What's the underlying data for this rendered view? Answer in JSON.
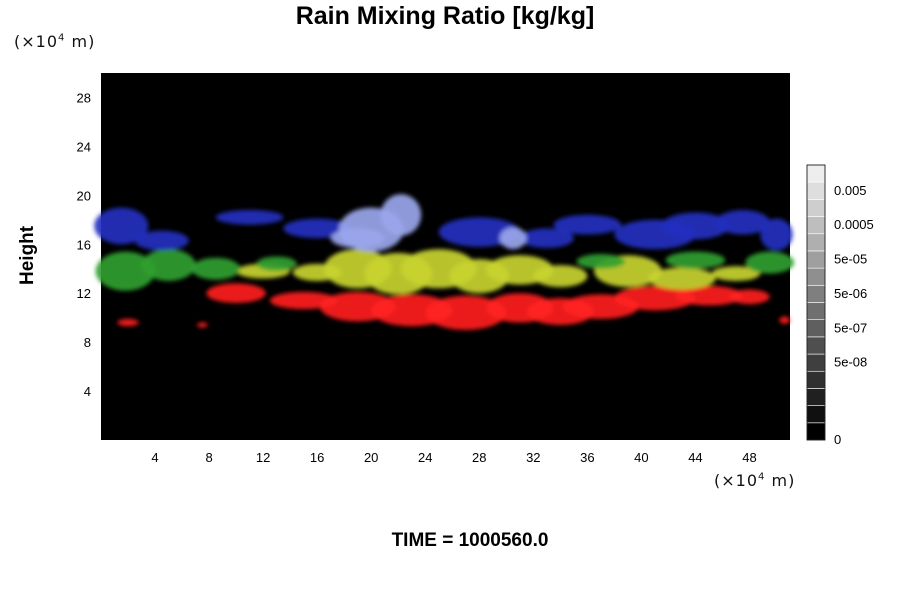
{
  "chart_data": {
    "type": "heatmap",
    "title": "Rain Mixing Ratio [kg/kg]",
    "ylabel": "Height",
    "x_unit": {
      "prefix": "(×10",
      "exp": "4",
      "suffix": " m)"
    },
    "y_unit": {
      "prefix": "(×10",
      "exp": "4",
      "suffix": " m)"
    },
    "xlim": [
      0,
      51
    ],
    "ylim": [
      0,
      30
    ],
    "x_ticks": [
      4,
      8,
      12,
      16,
      20,
      24,
      28,
      32,
      36,
      40,
      44,
      48
    ],
    "y_ticks": [
      4,
      8,
      12,
      16,
      20,
      24,
      28
    ],
    "background_color": "#000000",
    "colorbar": {
      "levels": 16,
      "tick_labels": [
        "0.005",
        "0.0005",
        "5e-05",
        "5e-06",
        "5e-07",
        "5e-08",
        "0"
      ],
      "tick_level_positions": [
        14.5,
        12.5,
        10.5,
        8.5,
        6.5,
        4.5,
        0
      ]
    },
    "layers": [
      {
        "color": "#ff2020",
        "blobs": [
          [
            10,
            12.0,
            2.2,
            0.8
          ],
          [
            15,
            11.4,
            2.5,
            0.7
          ],
          [
            19,
            10.9,
            2.8,
            1.2
          ],
          [
            23,
            10.6,
            3.0,
            1.3
          ],
          [
            27,
            10.4,
            3.0,
            1.4
          ],
          [
            31,
            10.8,
            2.5,
            1.2
          ],
          [
            34,
            10.5,
            2.5,
            1.1
          ],
          [
            37,
            10.9,
            2.8,
            1.0
          ],
          [
            41,
            11.6,
            3.0,
            1.0
          ],
          [
            45,
            11.8,
            2.5,
            0.8
          ],
          [
            48,
            11.7,
            1.5,
            0.6
          ],
          [
            2,
            9.6,
            0.8,
            0.3
          ],
          [
            7.5,
            9.4,
            0.4,
            0.2
          ],
          [
            50.6,
            9.8,
            0.4,
            0.3
          ]
        ]
      },
      {
        "color": "#c8d430",
        "blobs": [
          [
            12,
            13.8,
            2.0,
            0.6
          ],
          [
            16,
            13.7,
            1.8,
            0.7
          ],
          [
            19,
            14.0,
            2.5,
            1.6
          ],
          [
            22,
            13.6,
            2.5,
            1.7
          ],
          [
            25,
            14.0,
            2.8,
            1.6
          ],
          [
            28,
            13.4,
            2.2,
            1.4
          ],
          [
            31,
            13.9,
            2.5,
            1.2
          ],
          [
            34,
            13.4,
            2.0,
            0.9
          ],
          [
            39,
            13.8,
            2.5,
            1.3
          ],
          [
            43,
            13.2,
            2.5,
            0.9
          ],
          [
            47,
            13.6,
            1.8,
            0.6
          ]
        ]
      },
      {
        "color": "#30a030",
        "blobs": [
          [
            1.8,
            13.8,
            2.2,
            1.6
          ],
          [
            5,
            14.3,
            2.0,
            1.3
          ],
          [
            8.5,
            14.0,
            1.8,
            0.9
          ],
          [
            13,
            14.4,
            1.5,
            0.6
          ],
          [
            37,
            14.6,
            1.8,
            0.6
          ],
          [
            44,
            14.7,
            2.2,
            0.7
          ],
          [
            49.5,
            14.5,
            1.8,
            0.9
          ]
        ]
      },
      {
        "color": "#2430c0",
        "blobs": [
          [
            1.5,
            17.5,
            2.0,
            1.5
          ],
          [
            4.5,
            16.3,
            2.0,
            0.8
          ],
          [
            11,
            18.2,
            2.5,
            0.6
          ],
          [
            16,
            17.3,
            2.5,
            0.8
          ],
          [
            28,
            17.0,
            3.0,
            1.2
          ],
          [
            33,
            16.5,
            2.0,
            0.8
          ],
          [
            36,
            17.6,
            2.5,
            0.8
          ],
          [
            41,
            16.8,
            3.0,
            1.2
          ],
          [
            44,
            17.5,
            2.5,
            1.1
          ],
          [
            47.5,
            17.8,
            2.0,
            1.0
          ],
          [
            50,
            16.8,
            1.2,
            1.3
          ]
        ]
      },
      {
        "color": "#9aa6ec",
        "blobs": [
          [
            20,
            17.2,
            2.4,
            1.8
          ],
          [
            22.2,
            18.4,
            1.5,
            1.7
          ],
          [
            19,
            16.5,
            2.0,
            0.8
          ],
          [
            30.5,
            16.5,
            1.0,
            0.9
          ]
        ]
      }
    ]
  },
  "time_label": "TIME = 1000560.0"
}
